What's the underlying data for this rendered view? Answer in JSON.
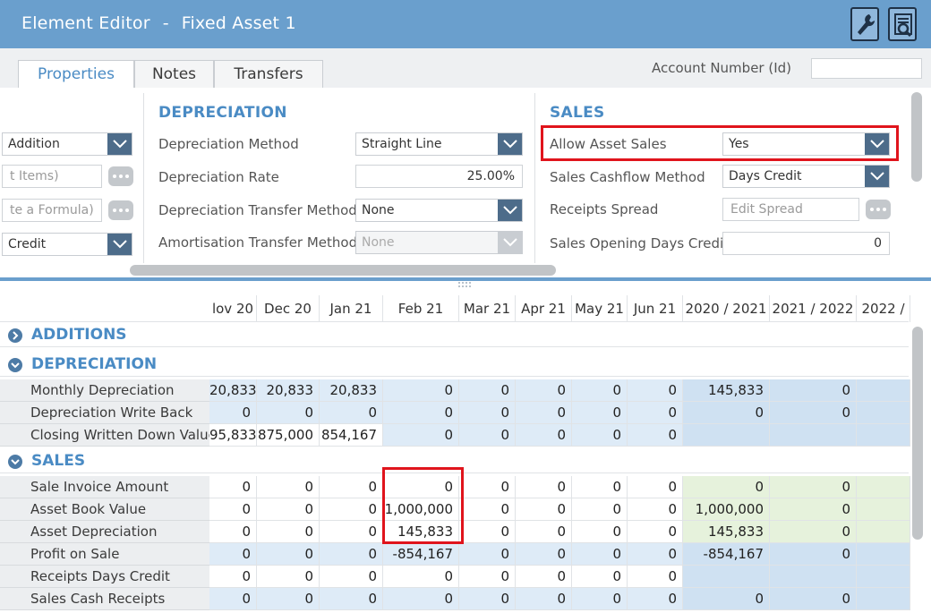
{
  "header": {
    "app_title": "Element Editor",
    "separator": "-",
    "element_name": "Fixed Asset 1",
    "buttons": [
      {
        "name": "wrench-button",
        "icon": "wrench-icon"
      },
      {
        "name": "search-document-button",
        "icon": "search-document-icon"
      }
    ],
    "colors": {
      "header_bg": "#6a9fcd",
      "accent": "#4a8bc4",
      "highlight": "#e0141c",
      "dropdown": "#4d6c8a"
    }
  },
  "tabs": [
    {
      "label": "Properties",
      "active": true
    },
    {
      "label": "Notes",
      "active": false
    },
    {
      "label": "Transfers",
      "active": false
    }
  ],
  "account_number": {
    "label": "Account Number (Id)",
    "value": ""
  },
  "left_section": {
    "fields": [
      {
        "value": "Addition",
        "type": "select"
      },
      {
        "value": "t Items)",
        "type": "placeholder-input"
      },
      {
        "value": "te a Formula)",
        "type": "placeholder-input"
      },
      {
        "value": "Credit",
        "type": "select"
      }
    ]
  },
  "depreciation": {
    "title": "DEPRECIATION",
    "fields": [
      {
        "label": "Depreciation Method",
        "value": "Straight Line",
        "type": "select"
      },
      {
        "label": "Depreciation Rate",
        "value": "25.00%",
        "type": "input"
      },
      {
        "label": "Depreciation Transfer Method",
        "value": "None",
        "type": "select"
      },
      {
        "label": "Amortisation Transfer Method",
        "value": "None",
        "type": "select-disabled"
      }
    ]
  },
  "sales": {
    "title": "SALES",
    "fields": [
      {
        "label": "Allow Asset Sales",
        "value": "Yes",
        "type": "select"
      },
      {
        "label": "Sales Cashflow Method",
        "value": "Days Credit",
        "type": "select"
      },
      {
        "label": "Receipts Spread",
        "value": "Edit Spread",
        "type": "placeholder-input"
      },
      {
        "label": "Sales Opening Days Credit",
        "value": "0",
        "type": "input"
      }
    ]
  },
  "grid": {
    "columns": [
      "lov 20",
      "Dec 20",
      "Jan 21",
      "Feb 21",
      "Mar 21",
      "Apr 21",
      "May 21",
      "Jun 21",
      "2020 / 2021",
      "2021 / 2022",
      "2022 /"
    ],
    "sections": [
      {
        "name": "ADDITIONS",
        "expanded": false,
        "rows": []
      },
      {
        "name": "DEPRECIATION",
        "expanded": true,
        "rows": [
          {
            "label": "Monthly Depreciation",
            "values": [
              "20,833",
              "20,833",
              "20,833",
              "0",
              "0",
              "0",
              "0",
              "0",
              "145,833",
              "0",
              ""
            ]
          },
          {
            "label": "Depreciation Write Back",
            "values": [
              "0",
              "0",
              "0",
              "0",
              "0",
              "0",
              "0",
              "0",
              "0",
              "0",
              ""
            ]
          },
          {
            "label": "Closing Written Down Value",
            "values": [
              "95,833",
              "875,000",
              "854,167",
              "0",
              "0",
              "0",
              "0",
              "0",
              "",
              "",
              ""
            ]
          }
        ]
      },
      {
        "name": "SALES",
        "expanded": true,
        "rows": [
          {
            "label": "Sale Invoice Amount",
            "values": [
              "0",
              "0",
              "0",
              "0",
              "0",
              "0",
              "0",
              "0",
              "0",
              "0",
              ""
            ]
          },
          {
            "label": "Asset Book Value",
            "values": [
              "0",
              "0",
              "0",
              "1,000,000",
              "0",
              "0",
              "0",
              "0",
              "1,000,000",
              "0",
              ""
            ]
          },
          {
            "label": "Asset Depreciation",
            "values": [
              "0",
              "0",
              "0",
              "145,833",
              "0",
              "0",
              "0",
              "0",
              "145,833",
              "0",
              ""
            ]
          },
          {
            "label": "Profit on Sale",
            "values": [
              "0",
              "0",
              "0",
              "-854,167",
              "0",
              "0",
              "0",
              "0",
              "-854,167",
              "0",
              ""
            ]
          },
          {
            "label": "Receipts Days Credit",
            "values": [
              "0",
              "0",
              "0",
              "0",
              "0",
              "0",
              "0",
              "0",
              "",
              "",
              ""
            ]
          },
          {
            "label": "Sales Cash Receipts",
            "values": [
              "0",
              "0",
              "0",
              "0",
              "0",
              "0",
              "0",
              "0",
              "0",
              "0",
              ""
            ]
          }
        ]
      }
    ]
  }
}
